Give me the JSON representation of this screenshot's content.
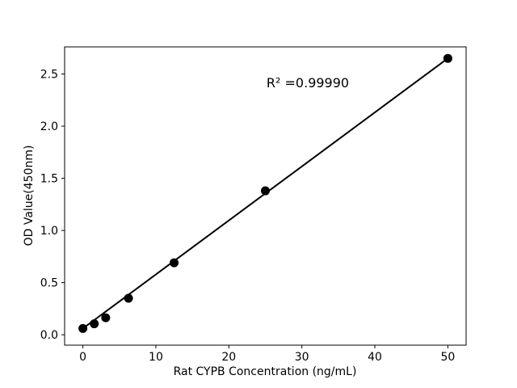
{
  "figure": {
    "background": "#ffffff",
    "foreground": "#000000"
  },
  "chart_data": {
    "type": "scatter",
    "title": "",
    "xlabel": "Rat CYPB Concentration (ng/mL)",
    "ylabel": "OD Value(450nm)",
    "x": [
      0,
      1.5625,
      3.125,
      6.25,
      12.5,
      25,
      50
    ],
    "y": [
      0.06,
      0.105,
      0.163,
      0.35,
      0.69,
      1.38,
      2.65
    ],
    "fit_line": {
      "x": [
        0,
        50
      ],
      "y": [
        0.06,
        2.65
      ]
    },
    "annotation": "R² =0.99990",
    "xlim": [
      -2.5,
      52.5
    ],
    "ylim": [
      -0.1,
      2.76
    ],
    "xticks": [
      0,
      10,
      20,
      30,
      40,
      50
    ],
    "xtick_labels": [
      "0",
      "10",
      "20",
      "30",
      "40",
      "50"
    ],
    "yticks": [
      0.0,
      0.5,
      1.0,
      1.5,
      2.0,
      2.5
    ],
    "ytick_labels": [
      "0.0",
      "0.5",
      "1.0",
      "1.5",
      "2.0",
      "2.5"
    ],
    "legend": null,
    "grid": false,
    "marker_color": "#000000",
    "line_color": "#000000"
  }
}
